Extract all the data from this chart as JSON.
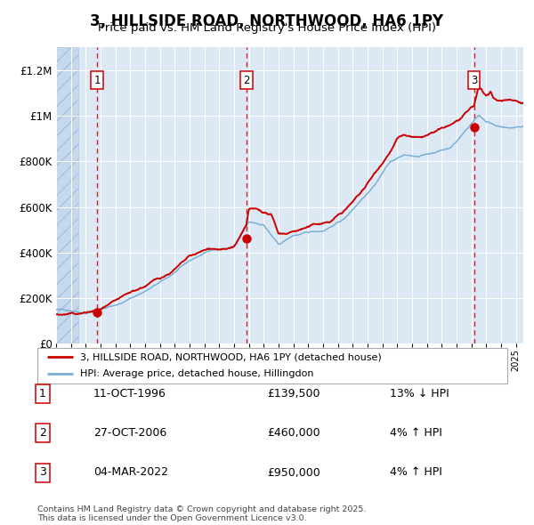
{
  "title": "3, HILLSIDE ROAD, NORTHWOOD, HA6 1PY",
  "subtitle": "Price paid vs. HM Land Registry's House Price Index (HPI)",
  "legend_line1": "3, HILLSIDE ROAD, NORTHWOOD, HA6 1PY (detached house)",
  "legend_line2": "HPI: Average price, detached house, Hillingdon",
  "footer": "Contains HM Land Registry data © Crown copyright and database right 2025.\nThis data is licensed under the Open Government Licence v3.0.",
  "transactions": [
    {
      "num": 1,
      "date": "11-OCT-1996",
      "price": 139500,
      "hpi_diff": "13% ↓ HPI",
      "year_x": 1996.78
    },
    {
      "num": 2,
      "date": "27-OCT-2006",
      "price": 460000,
      "hpi_diff": "4% ↑ HPI",
      "year_x": 2006.82
    },
    {
      "num": 3,
      "date": "04-MAR-2022",
      "price": 950000,
      "hpi_diff": "4% ↑ HPI",
      "year_x": 2022.17
    }
  ],
  "red_line_color": "#cc0000",
  "blue_line_color": "#7bafd4",
  "background_color": "#dce9f5",
  "ylim": [
    0,
    1300000
  ],
  "xlim_start": 1994.0,
  "xlim_end": 2025.5,
  "hpi_base_segments": [
    [
      1994.0,
      150000
    ],
    [
      1995.0,
      148000
    ],
    [
      1996.0,
      142000
    ],
    [
      1997.0,
      158000
    ],
    [
      1998.5,
      190000
    ],
    [
      2000.0,
      240000
    ],
    [
      2001.5,
      295000
    ],
    [
      2003.0,
      365000
    ],
    [
      2004.5,
      415000
    ],
    [
      2006.0,
      425000
    ],
    [
      2007.0,
      530000
    ],
    [
      2008.0,
      520000
    ],
    [
      2009.0,
      430000
    ],
    [
      2010.0,
      470000
    ],
    [
      2011.0,
      480000
    ],
    [
      2012.0,
      490000
    ],
    [
      2013.5,
      548000
    ],
    [
      2014.5,
      625000
    ],
    [
      2015.5,
      705000
    ],
    [
      2016.5,
      805000
    ],
    [
      2017.5,
      835000
    ],
    [
      2018.5,
      822000
    ],
    [
      2019.5,
      842000
    ],
    [
      2020.5,
      862000
    ],
    [
      2021.0,
      892000
    ],
    [
      2022.0,
      972000
    ],
    [
      2022.5,
      1010000
    ],
    [
      2023.0,
      982000
    ],
    [
      2023.5,
      972000
    ],
    [
      2024.0,
      962000
    ],
    [
      2024.5,
      952000
    ],
    [
      2025.5,
      958000
    ]
  ],
  "red_base_segments": [
    [
      1994.0,
      130000
    ],
    [
      1995.5,
      128000
    ],
    [
      1996.0,
      132000
    ],
    [
      1996.78,
      139500
    ],
    [
      1997.5,
      152000
    ],
    [
      1998.5,
      178000
    ],
    [
      2000.0,
      222000
    ],
    [
      2001.5,
      272000
    ],
    [
      2003.0,
      342000
    ],
    [
      2004.5,
      372000
    ],
    [
      2005.5,
      367000
    ],
    [
      2006.0,
      378000
    ],
    [
      2006.82,
      460000
    ],
    [
      2007.0,
      532000
    ],
    [
      2007.5,
      527000
    ],
    [
      2008.5,
      502000
    ],
    [
      2009.0,
      418000
    ],
    [
      2009.5,
      422000
    ],
    [
      2010.5,
      442000
    ],
    [
      2011.5,
      458000
    ],
    [
      2012.5,
      472000
    ],
    [
      2013.5,
      522000
    ],
    [
      2014.5,
      592000
    ],
    [
      2015.5,
      682000
    ],
    [
      2016.5,
      782000
    ],
    [
      2017.0,
      842000
    ],
    [
      2017.5,
      852000
    ],
    [
      2018.0,
      842000
    ],
    [
      2018.5,
      832000
    ],
    [
      2019.5,
      852000
    ],
    [
      2020.5,
      872000
    ],
    [
      2021.0,
      892000
    ],
    [
      2021.5,
      912000
    ],
    [
      2022.0,
      942000
    ],
    [
      2022.17,
      950000
    ],
    [
      2022.5,
      1032000
    ],
    [
      2022.8,
      1002000
    ],
    [
      2023.0,
      992000
    ],
    [
      2023.3,
      1012000
    ],
    [
      2023.5,
      982000
    ],
    [
      2023.8,
      972000
    ],
    [
      2024.0,
      972000
    ],
    [
      2024.3,
      977000
    ],
    [
      2024.6,
      982000
    ],
    [
      2025.0,
      977000
    ],
    [
      2025.5,
      972000
    ]
  ]
}
